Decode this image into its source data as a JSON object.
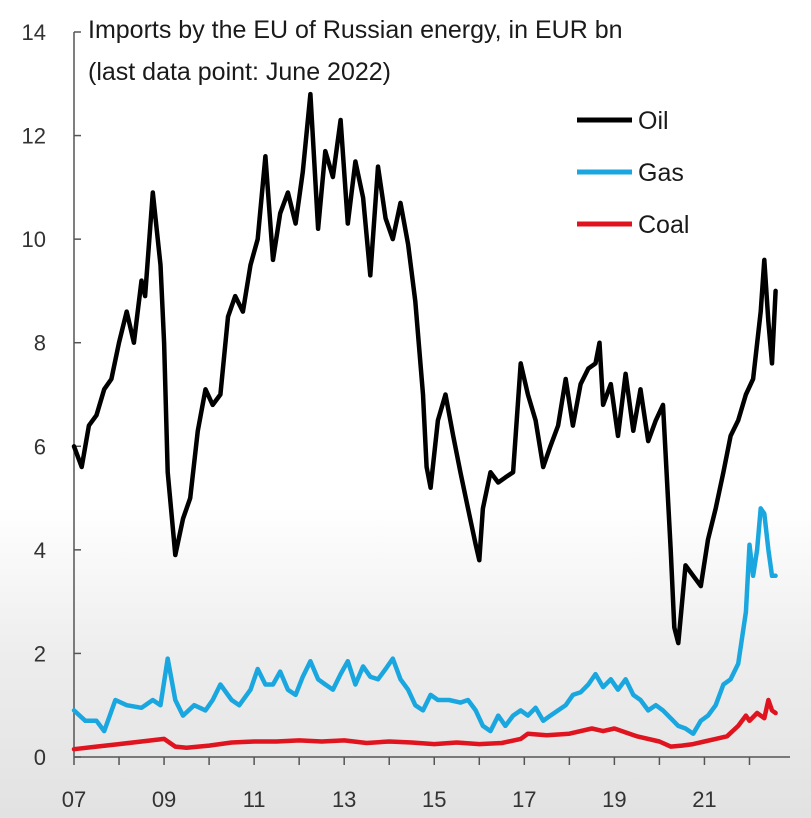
{
  "chart_data": {
    "type": "line",
    "title": "Imports by the EU of Russian energy, in EUR bn",
    "subtitle": "(last data point: June 2022)",
    "xlabel": "",
    "ylabel": "",
    "xlim": [
      2007.0,
      2022.9
    ],
    "ylim": [
      0,
      14
    ],
    "x_ticks": [
      2007,
      2009,
      2011,
      2013,
      2015,
      2017,
      2019,
      2021
    ],
    "x_tick_labels": [
      "07",
      "09",
      "11",
      "13",
      "15",
      "17",
      "19",
      "21"
    ],
    "y_ticks": [
      0,
      2,
      4,
      6,
      8,
      10,
      12,
      14
    ],
    "y_tick_labels": [
      "0",
      "2",
      "4",
      "6",
      "8",
      "10",
      "12",
      "14"
    ],
    "grid": false,
    "legend_position": "top-right",
    "series": [
      {
        "name": "Oil",
        "color": "#000000",
        "points": [
          [
            2007.0,
            6.0
          ],
          [
            2007.17,
            5.6
          ],
          [
            2007.33,
            6.4
          ],
          [
            2007.5,
            6.6
          ],
          [
            2007.67,
            7.1
          ],
          [
            2007.83,
            7.3
          ],
          [
            2008.0,
            8.0
          ],
          [
            2008.17,
            8.6
          ],
          [
            2008.33,
            8.0
          ],
          [
            2008.5,
            9.2
          ],
          [
            2008.58,
            8.9
          ],
          [
            2008.75,
            10.9
          ],
          [
            2008.92,
            9.5
          ],
          [
            2009.0,
            8.0
          ],
          [
            2009.08,
            5.5
          ],
          [
            2009.25,
            3.9
          ],
          [
            2009.42,
            4.6
          ],
          [
            2009.58,
            5.0
          ],
          [
            2009.75,
            6.3
          ],
          [
            2009.92,
            7.1
          ],
          [
            2010.08,
            6.8
          ],
          [
            2010.25,
            7.0
          ],
          [
            2010.42,
            8.5
          ],
          [
            2010.58,
            8.9
          ],
          [
            2010.75,
            8.6
          ],
          [
            2010.92,
            9.5
          ],
          [
            2011.08,
            10.0
          ],
          [
            2011.25,
            11.6
          ],
          [
            2011.42,
            9.6
          ],
          [
            2011.58,
            10.5
          ],
          [
            2011.75,
            10.9
          ],
          [
            2011.92,
            10.3
          ],
          [
            2012.08,
            11.3
          ],
          [
            2012.25,
            12.8
          ],
          [
            2012.42,
            10.2
          ],
          [
            2012.58,
            11.7
          ],
          [
            2012.75,
            11.2
          ],
          [
            2012.92,
            12.3
          ],
          [
            2013.08,
            10.3
          ],
          [
            2013.25,
            11.5
          ],
          [
            2013.42,
            10.8
          ],
          [
            2013.58,
            9.3
          ],
          [
            2013.75,
            11.4
          ],
          [
            2013.92,
            10.4
          ],
          [
            2014.08,
            10.0
          ],
          [
            2014.25,
            10.7
          ],
          [
            2014.42,
            9.9
          ],
          [
            2014.58,
            8.8
          ],
          [
            2014.75,
            7.0
          ],
          [
            2014.83,
            5.6
          ],
          [
            2014.92,
            5.2
          ],
          [
            2015.08,
            6.5
          ],
          [
            2015.25,
            7.0
          ],
          [
            2015.42,
            6.2
          ],
          [
            2015.58,
            5.5
          ],
          [
            2015.75,
            4.8
          ],
          [
            2015.92,
            4.1
          ],
          [
            2016.0,
            3.8
          ],
          [
            2016.08,
            4.8
          ],
          [
            2016.25,
            5.5
          ],
          [
            2016.42,
            5.3
          ],
          [
            2016.58,
            5.4
          ],
          [
            2016.75,
            5.5
          ],
          [
            2016.92,
            7.6
          ],
          [
            2017.08,
            7.0
          ],
          [
            2017.25,
            6.5
          ],
          [
            2017.42,
            5.6
          ],
          [
            2017.58,
            6.0
          ],
          [
            2017.75,
            6.4
          ],
          [
            2017.92,
            7.3
          ],
          [
            2018.08,
            6.4
          ],
          [
            2018.25,
            7.2
          ],
          [
            2018.42,
            7.5
          ],
          [
            2018.58,
            7.6
          ],
          [
            2018.67,
            8.0
          ],
          [
            2018.75,
            6.8
          ],
          [
            2018.92,
            7.2
          ],
          [
            2019.08,
            6.2
          ],
          [
            2019.25,
            7.4
          ],
          [
            2019.42,
            6.3
          ],
          [
            2019.58,
            7.1
          ],
          [
            2019.75,
            6.1
          ],
          [
            2019.92,
            6.5
          ],
          [
            2020.08,
            6.8
          ],
          [
            2020.25,
            4.0
          ],
          [
            2020.33,
            2.5
          ],
          [
            2020.42,
            2.2
          ],
          [
            2020.58,
            3.7
          ],
          [
            2020.75,
            3.5
          ],
          [
            2020.92,
            3.3
          ],
          [
            2021.08,
            4.2
          ],
          [
            2021.25,
            4.8
          ],
          [
            2021.42,
            5.5
          ],
          [
            2021.58,
            6.2
          ],
          [
            2021.75,
            6.5
          ],
          [
            2021.92,
            7.0
          ],
          [
            2022.08,
            7.3
          ],
          [
            2022.25,
            8.6
          ],
          [
            2022.33,
            9.6
          ],
          [
            2022.42,
            8.4
          ],
          [
            2022.5,
            7.6
          ],
          [
            2022.58,
            9.0
          ]
        ]
      },
      {
        "name": "Gas",
        "color": "#1aa7e0",
        "points": [
          [
            2007.0,
            0.9
          ],
          [
            2007.25,
            0.7
          ],
          [
            2007.5,
            0.7
          ],
          [
            2007.67,
            0.5
          ],
          [
            2007.92,
            1.1
          ],
          [
            2008.17,
            1.0
          ],
          [
            2008.5,
            0.95
          ],
          [
            2008.75,
            1.1
          ],
          [
            2008.92,
            1.0
          ],
          [
            2009.08,
            1.9
          ],
          [
            2009.25,
            1.1
          ],
          [
            2009.42,
            0.8
          ],
          [
            2009.67,
            1.0
          ],
          [
            2009.92,
            0.9
          ],
          [
            2010.08,
            1.1
          ],
          [
            2010.25,
            1.4
          ],
          [
            2010.5,
            1.1
          ],
          [
            2010.67,
            1.0
          ],
          [
            2010.92,
            1.3
          ],
          [
            2011.08,
            1.7
          ],
          [
            2011.25,
            1.4
          ],
          [
            2011.42,
            1.4
          ],
          [
            2011.58,
            1.65
          ],
          [
            2011.75,
            1.3
          ],
          [
            2011.92,
            1.2
          ],
          [
            2012.08,
            1.55
          ],
          [
            2012.25,
            1.85
          ],
          [
            2012.42,
            1.5
          ],
          [
            2012.58,
            1.4
          ],
          [
            2012.75,
            1.3
          ],
          [
            2012.92,
            1.6
          ],
          [
            2013.08,
            1.85
          ],
          [
            2013.25,
            1.4
          ],
          [
            2013.42,
            1.75
          ],
          [
            2013.58,
            1.55
          ],
          [
            2013.75,
            1.5
          ],
          [
            2013.92,
            1.7
          ],
          [
            2014.08,
            1.9
          ],
          [
            2014.25,
            1.5
          ],
          [
            2014.42,
            1.3
          ],
          [
            2014.58,
            1.0
          ],
          [
            2014.75,
            0.9
          ],
          [
            2014.92,
            1.2
          ],
          [
            2015.08,
            1.1
          ],
          [
            2015.33,
            1.1
          ],
          [
            2015.58,
            1.05
          ],
          [
            2015.75,
            1.1
          ],
          [
            2015.92,
            0.9
          ],
          [
            2016.08,
            0.6
          ],
          [
            2016.25,
            0.5
          ],
          [
            2016.42,
            0.8
          ],
          [
            2016.58,
            0.6
          ],
          [
            2016.75,
            0.8
          ],
          [
            2016.92,
            0.9
          ],
          [
            2017.08,
            0.8
          ],
          [
            2017.25,
            0.95
          ],
          [
            2017.42,
            0.7
          ],
          [
            2017.58,
            0.8
          ],
          [
            2017.75,
            0.9
          ],
          [
            2017.92,
            1.0
          ],
          [
            2018.08,
            1.2
          ],
          [
            2018.25,
            1.25
          ],
          [
            2018.42,
            1.4
          ],
          [
            2018.58,
            1.6
          ],
          [
            2018.75,
            1.35
          ],
          [
            2018.92,
            1.5
          ],
          [
            2019.08,
            1.3
          ],
          [
            2019.25,
            1.5
          ],
          [
            2019.42,
            1.2
          ],
          [
            2019.58,
            1.1
          ],
          [
            2019.75,
            0.9
          ],
          [
            2019.92,
            1.0
          ],
          [
            2020.08,
            0.9
          ],
          [
            2020.25,
            0.75
          ],
          [
            2020.42,
            0.6
          ],
          [
            2020.58,
            0.55
          ],
          [
            2020.75,
            0.45
          ],
          [
            2020.92,
            0.7
          ],
          [
            2021.08,
            0.8
          ],
          [
            2021.25,
            1.0
          ],
          [
            2021.42,
            1.4
          ],
          [
            2021.58,
            1.5
          ],
          [
            2021.75,
            1.8
          ],
          [
            2021.92,
            2.8
          ],
          [
            2022.0,
            4.1
          ],
          [
            2022.08,
            3.5
          ],
          [
            2022.17,
            4.0
          ],
          [
            2022.25,
            4.8
          ],
          [
            2022.33,
            4.7
          ],
          [
            2022.42,
            4.0
          ],
          [
            2022.5,
            3.5
          ],
          [
            2022.58,
            3.5
          ]
        ]
      },
      {
        "name": "Coal",
        "color": "#e0141e",
        "points": [
          [
            2007.0,
            0.15
          ],
          [
            2007.5,
            0.2
          ],
          [
            2008.0,
            0.25
          ],
          [
            2008.5,
            0.3
          ],
          [
            2009.0,
            0.35
          ],
          [
            2009.25,
            0.2
          ],
          [
            2009.5,
            0.18
          ],
          [
            2010.0,
            0.22
          ],
          [
            2010.5,
            0.28
          ],
          [
            2011.0,
            0.3
          ],
          [
            2011.5,
            0.3
          ],
          [
            2012.0,
            0.32
          ],
          [
            2012.5,
            0.3
          ],
          [
            2013.0,
            0.32
          ],
          [
            2013.5,
            0.27
          ],
          [
            2014.0,
            0.3
          ],
          [
            2014.5,
            0.28
          ],
          [
            2015.0,
            0.25
          ],
          [
            2015.5,
            0.28
          ],
          [
            2016.0,
            0.25
          ],
          [
            2016.5,
            0.27
          ],
          [
            2016.92,
            0.35
          ],
          [
            2017.08,
            0.45
          ],
          [
            2017.5,
            0.42
          ],
          [
            2018.0,
            0.45
          ],
          [
            2018.5,
            0.55
          ],
          [
            2018.75,
            0.5
          ],
          [
            2019.0,
            0.55
          ],
          [
            2019.5,
            0.4
          ],
          [
            2020.0,
            0.3
          ],
          [
            2020.25,
            0.2
          ],
          [
            2020.5,
            0.22
          ],
          [
            2020.75,
            0.25
          ],
          [
            2021.0,
            0.3
          ],
          [
            2021.25,
            0.35
          ],
          [
            2021.5,
            0.4
          ],
          [
            2021.75,
            0.6
          ],
          [
            2021.92,
            0.8
          ],
          [
            2022.0,
            0.7
          ],
          [
            2022.17,
            0.85
          ],
          [
            2022.33,
            0.75
          ],
          [
            2022.42,
            1.1
          ],
          [
            2022.5,
            0.9
          ],
          [
            2022.58,
            0.85
          ]
        ]
      }
    ]
  }
}
